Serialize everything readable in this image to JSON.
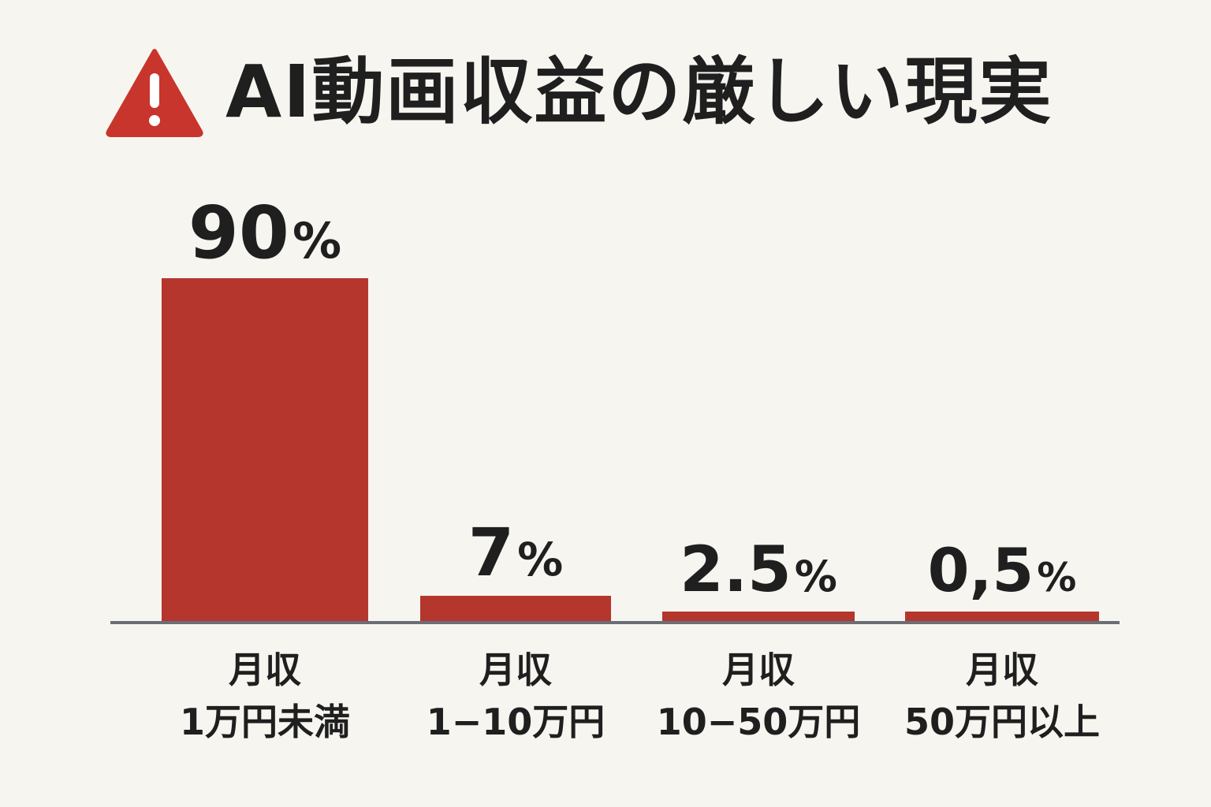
{
  "title": "AI動画収益の厳しい現実",
  "icons": {
    "warning": "warning-triangle-icon"
  },
  "colors": {
    "bar": "#b5362d",
    "warning": "#c8352c",
    "axis": "#6b6e75",
    "background": "#f7f5f0"
  },
  "chart_data": {
    "type": "bar",
    "title": "AI動画収益の厳しい現実",
    "xlabel": "",
    "ylabel": "",
    "ylim": [
      0,
      100
    ],
    "grid": false,
    "categories": [
      [
        "月収",
        "1万円未満"
      ],
      [
        "月収",
        "1−10万円"
      ],
      [
        "月収",
        "10−50万円"
      ],
      [
        "月収",
        "50万円以上"
      ]
    ],
    "values": [
      90,
      7,
      2.5,
      0.5
    ],
    "value_labels": [
      {
        "num": "90",
        "unit": "%"
      },
      {
        "num": "7",
        "unit": "%"
      },
      {
        "num": "2.5",
        "unit": "%"
      },
      {
        "num": "0,5",
        "unit": "%"
      }
    ]
  }
}
